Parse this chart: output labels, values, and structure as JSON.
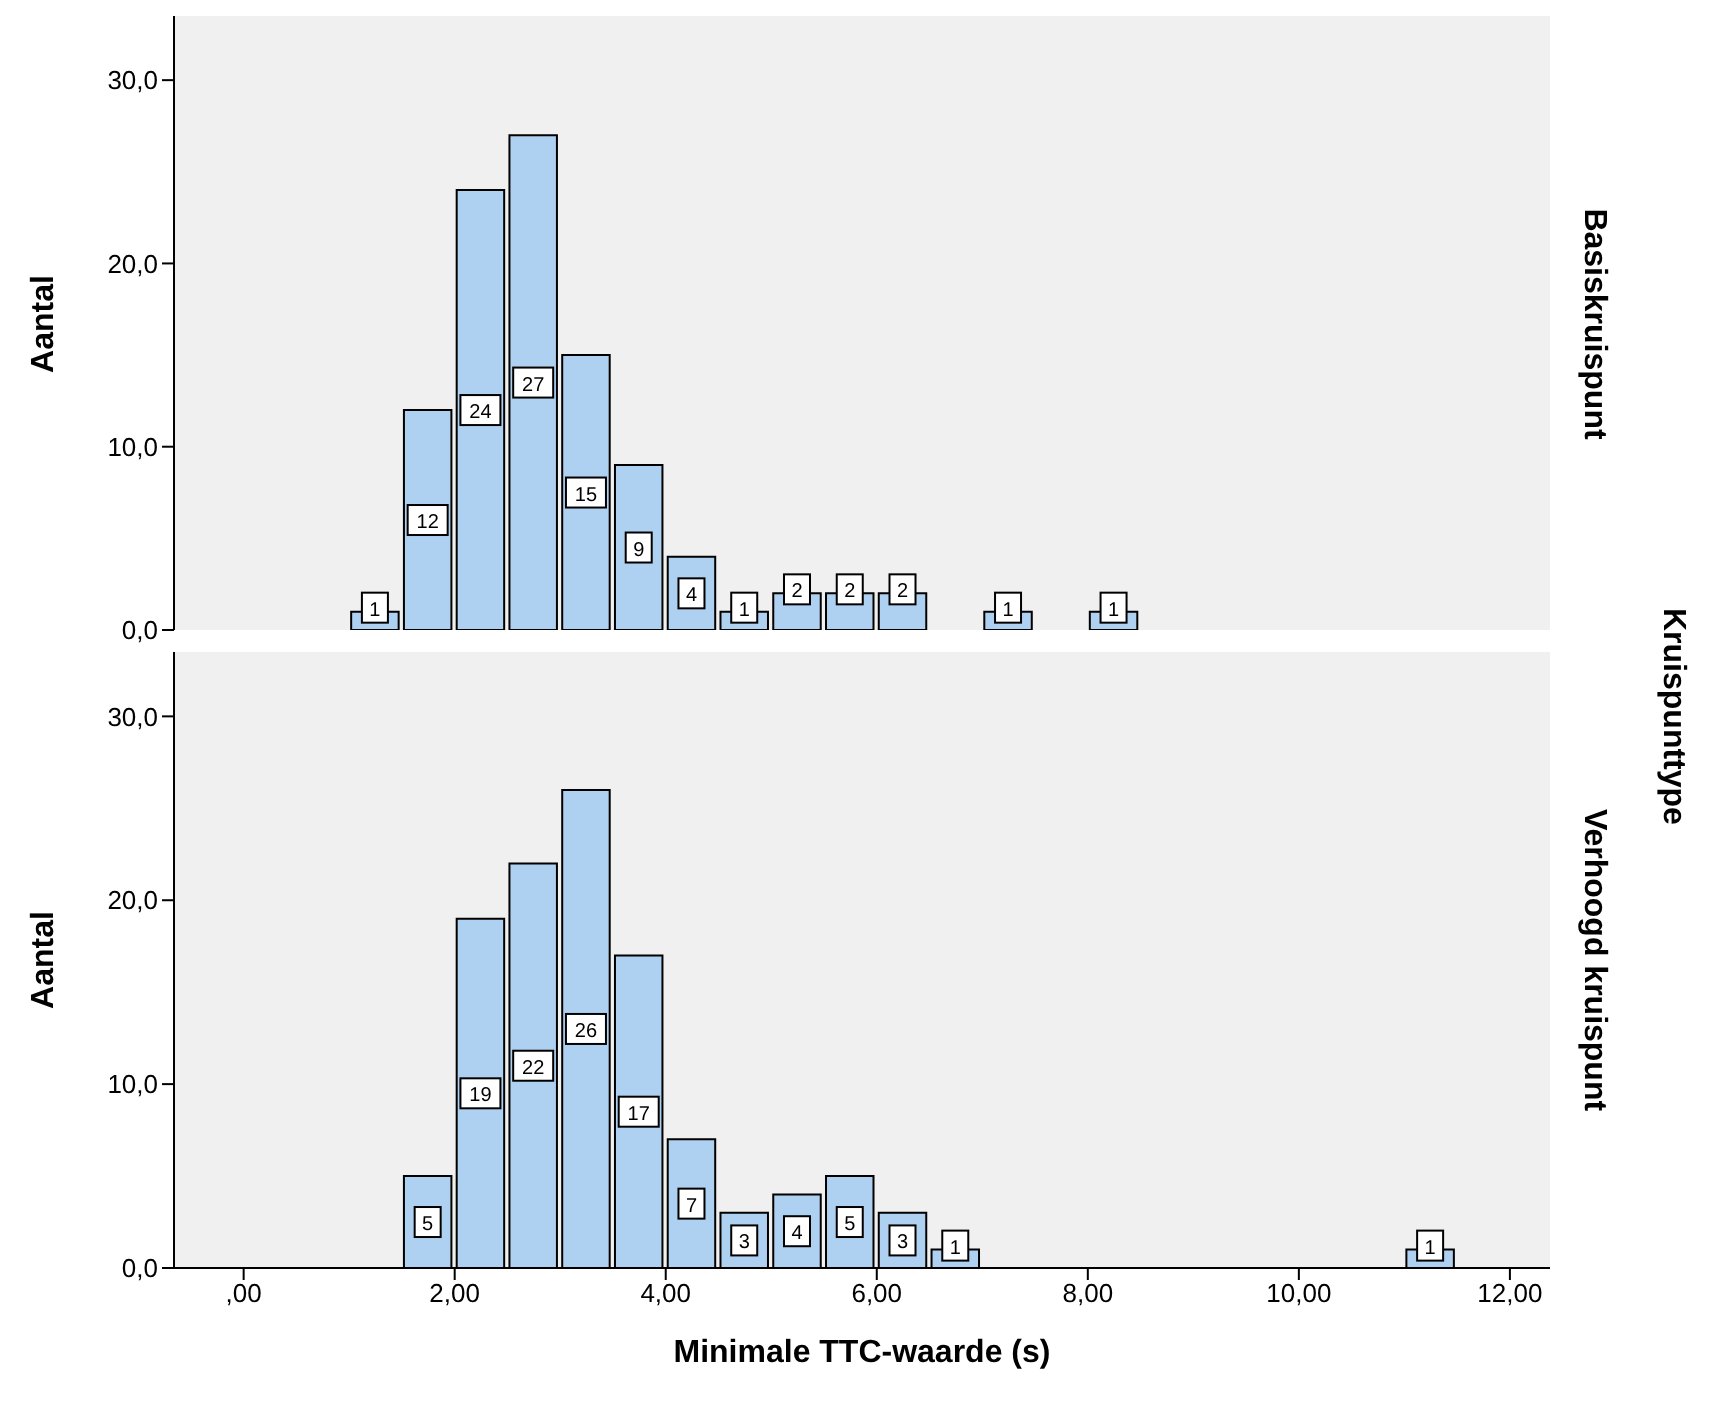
{
  "chart_data": [
    {
      "type": "histogram",
      "y2label": "Basiskruispunt",
      "ylabel": "Aantal",
      "annotations": [
        "Kruispunttype"
      ],
      "color": "#afd1f1",
      "bins": [
        1.0,
        1.5,
        2.0,
        2.5,
        3.0,
        3.5,
        4.0,
        4.5,
        5.0,
        5.5,
        6.0,
        6.5,
        7.0,
        7.5,
        8.0,
        8.5
      ],
      "values": [
        1,
        12,
        24,
        27,
        15,
        9,
        4,
        1,
        2,
        2,
        2,
        0,
        1,
        0,
        1
      ],
      "value_labels": [
        "1",
        "12",
        "24",
        "27",
        "15",
        "9",
        "4",
        "1",
        "2",
        "2",
        "2",
        null,
        "1",
        null,
        "1"
      ],
      "xlim": [
        -0.66,
        12.38
      ],
      "ylim": [
        0,
        33.5
      ],
      "yticks": [
        {
          "value": 0,
          "label": "0,0"
        },
        {
          "value": 10,
          "label": "10,0"
        },
        {
          "value": 20,
          "label": "20,0"
        },
        {
          "value": 30,
          "label": "30,0"
        }
      ],
      "tick_labels": "y"
    },
    {
      "type": "histogram",
      "y2label": "Verhoogd kruispunt",
      "ylabel": "Aantal",
      "xlabel": "Minimale TTC-waarde (s)",
      "color": "#afd1f1",
      "bins": [
        1.5,
        2.0,
        2.5,
        3.0,
        3.5,
        4.0,
        4.5,
        5.0,
        5.5,
        6.0,
        6.5,
        7.0,
        7.5,
        8.0,
        8.5,
        9.0,
        9.5,
        10.0,
        10.5,
        11.0,
        11.5
      ],
      "values": [
        5,
        19,
        22,
        26,
        17,
        7,
        3,
        4,
        5,
        3,
        1,
        0,
        0,
        0,
        0,
        0,
        0,
        0,
        0,
        1
      ],
      "value_labels": [
        "5",
        "19",
        "22",
        "26",
        "17",
        "7",
        "3",
        "4",
        "5",
        "3",
        "1",
        null,
        null,
        null,
        null,
        null,
        null,
        null,
        null,
        "1"
      ],
      "xlim": [
        -0.66,
        12.38
      ],
      "xticks": [
        {
          "value": 0,
          "label": ",00"
        },
        {
          "value": 2,
          "label": "2,00"
        },
        {
          "value": 4,
          "label": "4,00"
        },
        {
          "value": 6,
          "label": "6,00"
        },
        {
          "value": 8,
          "label": "8,00"
        },
        {
          "value": 10,
          "label": "10,00"
        },
        {
          "value": 12,
          "label": "12,00"
        }
      ],
      "ylim": [
        0,
        33.5
      ],
      "yticks": [
        {
          "value": 0,
          "label": "0,0"
        },
        {
          "value": 10,
          "label": "10,0"
        },
        {
          "value": 20,
          "label": "20,0"
        },
        {
          "value": 30,
          "label": "30,0"
        }
      ]
    }
  ]
}
